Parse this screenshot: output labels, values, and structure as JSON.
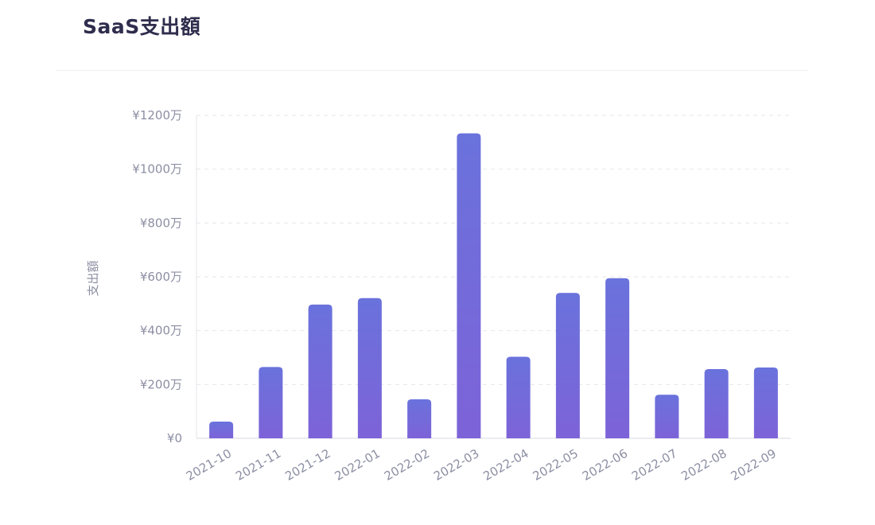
{
  "card": {
    "title": "SaaS支出額"
  },
  "chart_data": {
    "type": "bar",
    "title": "SaaS支出額",
    "ylabel": "支出額",
    "xlabel": "",
    "categories": [
      "2021-10",
      "2021-11",
      "2021-12",
      "2022-01",
      "2022-02",
      "2022-03",
      "2022-04",
      "2022-05",
      "2022-06",
      "2022-07",
      "2022-08",
      "2022-09"
    ],
    "values": [
      62,
      265,
      497,
      521,
      145,
      1133,
      303,
      540,
      595,
      162,
      257,
      263
    ],
    "ylim": [
      0,
      1200
    ],
    "yticks": [
      0,
      200,
      400,
      600,
      800,
      1000,
      1200
    ],
    "ytick_labels": [
      "¥0",
      "¥200万",
      "¥400万",
      "¥600万",
      "¥800万",
      "¥1000万",
      "¥1200万"
    ],
    "grid": true,
    "legend": "none",
    "bar_color_top": "#6a72dc",
    "bar_color_bottom": "#7d63d8"
  }
}
